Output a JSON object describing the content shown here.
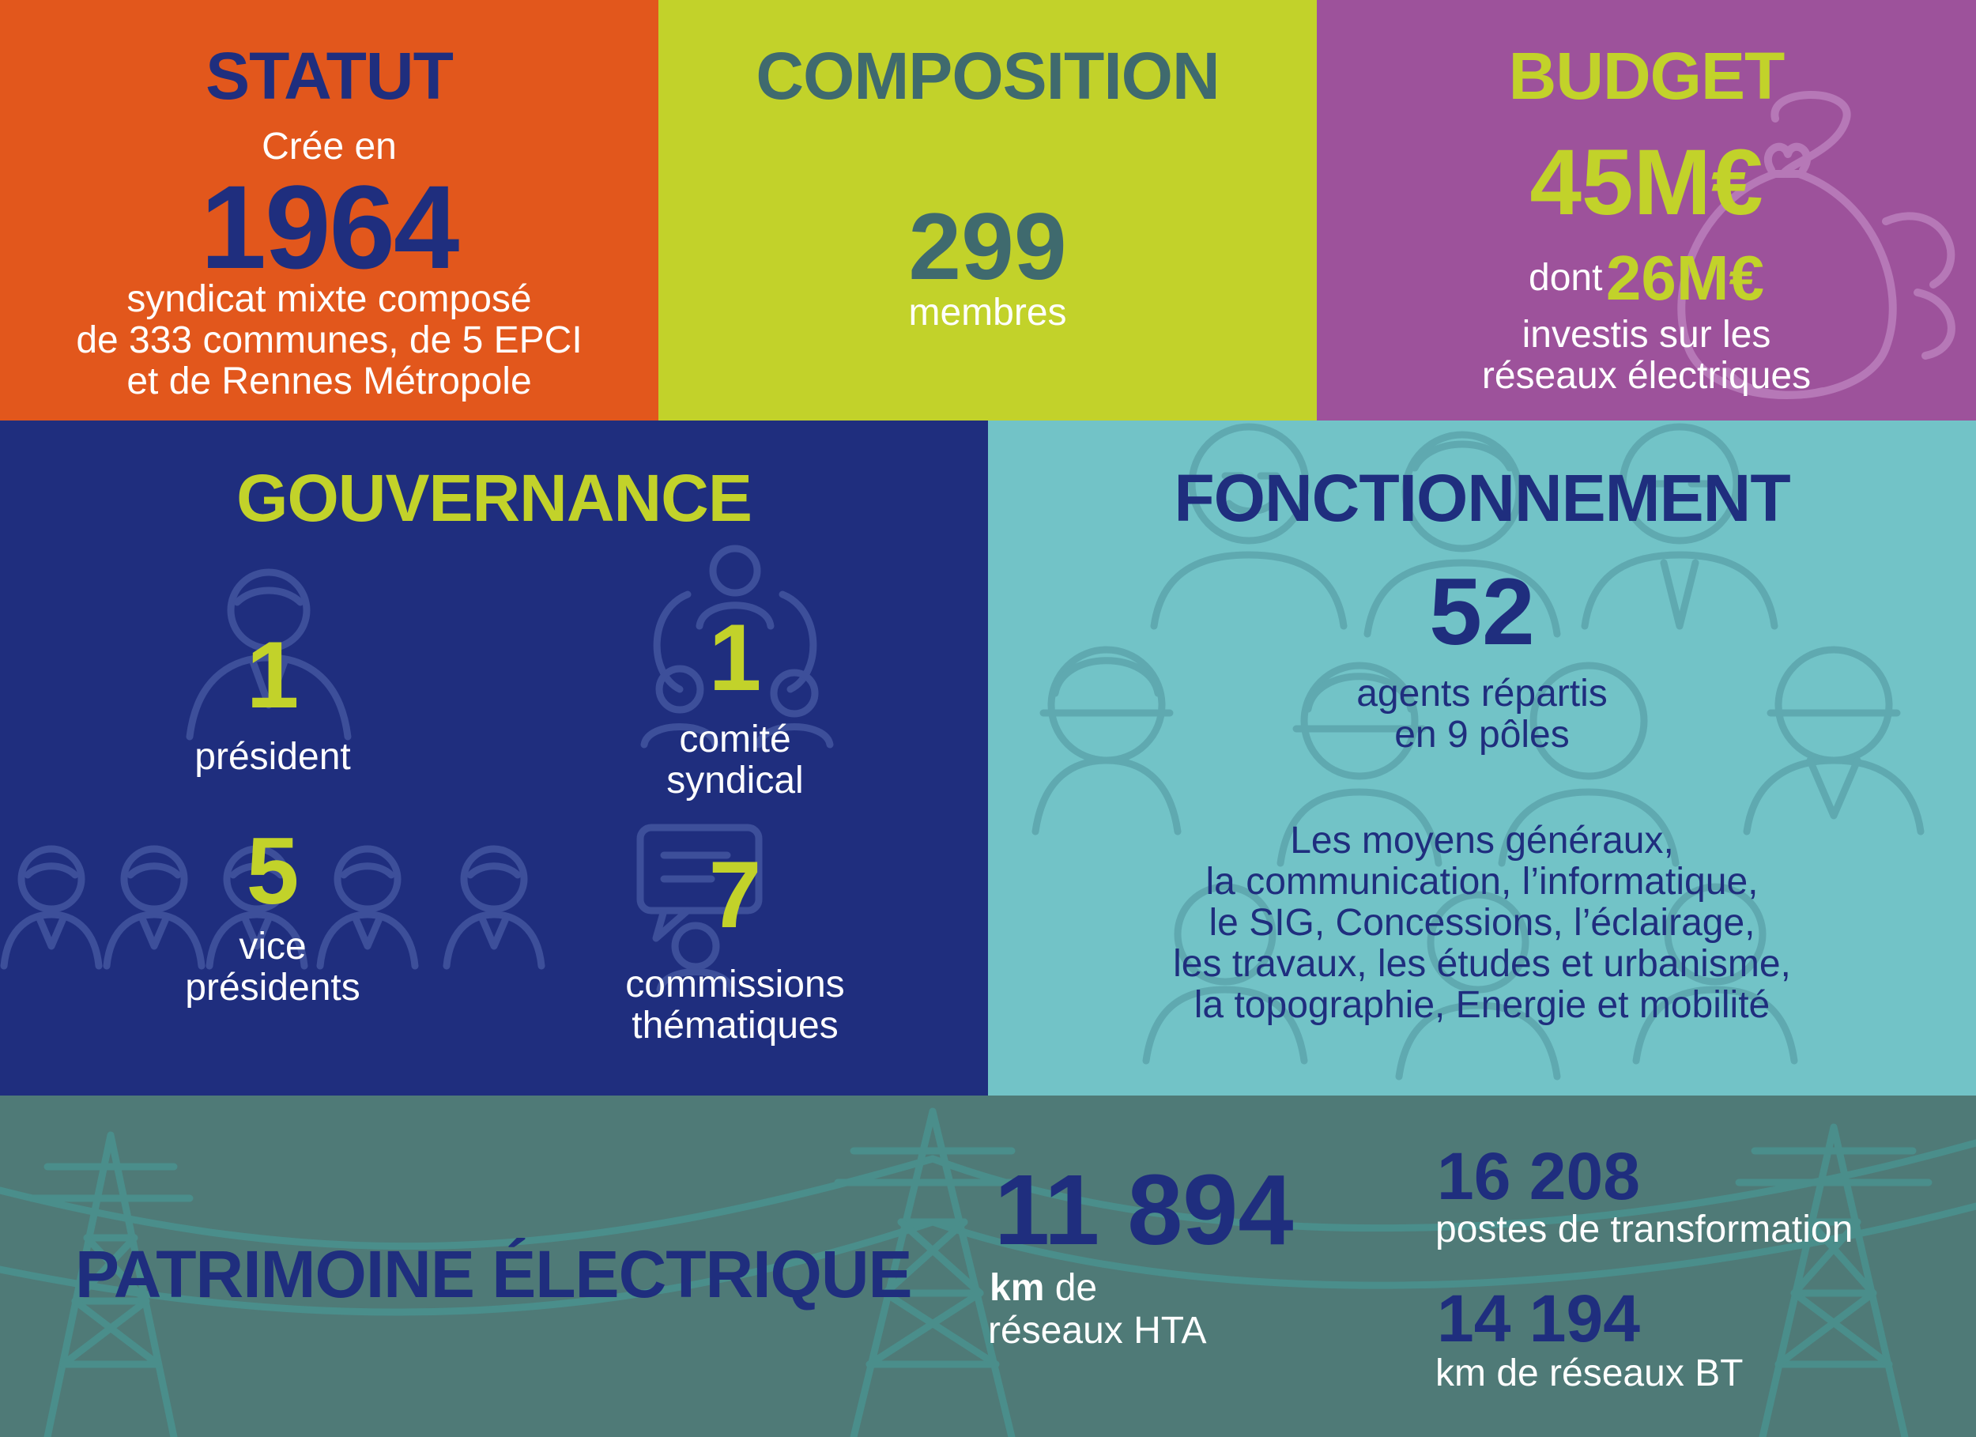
{
  "statut": {
    "title": "STATUT",
    "created_prefix": "Crée en",
    "year": "1964",
    "desc_line1": "syndicat mixte composé",
    "desc_line2": "de 333 communes, de 5 EPCI",
    "desc_line3": "et de Rennes Métropole"
  },
  "composition": {
    "title": "COMPOSITION",
    "value": "299",
    "label": "membres"
  },
  "budget": {
    "title": "BUDGET",
    "total": "45M€",
    "dont": "dont",
    "invested": "26M€",
    "desc_line1": "investis sur les",
    "desc_line2": "réseaux électriques"
  },
  "gouvernance": {
    "title": "GOUVERNANCE",
    "president": {
      "value": "1",
      "label": "président"
    },
    "comite": {
      "value": "1",
      "label_line1": "comité",
      "label_line2": "syndical"
    },
    "vice": {
      "value": "5",
      "label_line1": "vice",
      "label_line2": "présidents"
    },
    "commissions": {
      "value": "7",
      "label_line1": "commissions",
      "label_line2": "thématiques"
    }
  },
  "fonctionnement": {
    "title": "FONCTIONNEMENT",
    "value": "52",
    "label_line1": "agents répartis",
    "label_line2": "en 9 pôles",
    "poles": [
      "Les moyens généraux,",
      "la communication, l’informatique,",
      "le SIG, Concessions, l’éclairage,",
      "les travaux, les études et urbanisme,",
      "la topographie, Energie et mobilité"
    ]
  },
  "patrimoine": {
    "title": "PATRIMOINE ÉLECTRIQUE",
    "hta_value": "11 894",
    "hta_unit": "km",
    "hta_suffix": "de",
    "hta_label": "réseaux HTA",
    "postes_value": "16 208",
    "postes_label": "postes de transformation",
    "bt_value": "14 194",
    "bt_label": "km de réseaux BT"
  },
  "colors": {
    "orange": "#E2571C",
    "lime": "#C2D22A",
    "purple": "#9D529B",
    "navy": "#1F2E7E",
    "turquoise": "#72C3C7",
    "teal": "#4F7A77",
    "slate": "#3F6A6E"
  },
  "icons": [
    "money-bag-icon",
    "person-icon",
    "meeting-icon",
    "speech-bubble-icon",
    "audience-icon",
    "workers-icon",
    "pylon-icon"
  ]
}
